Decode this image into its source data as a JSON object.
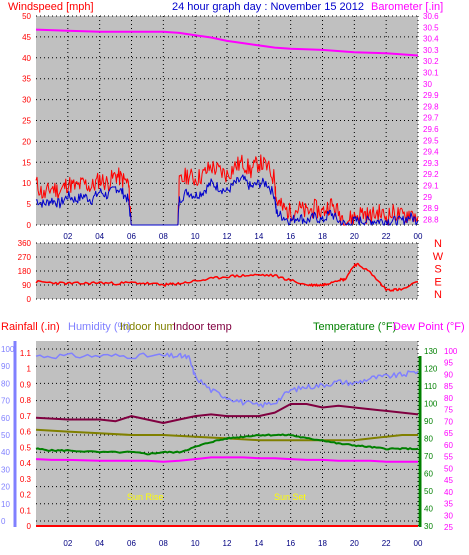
{
  "colors": {
    "plot_bg": "#c0c0c0",
    "grid": "#000000",
    "wind": "#ff0000",
    "gust": "#ff0000",
    "wind_avg": "#0000cc",
    "barometer": "#ff00ff",
    "direction": "#ff0000",
    "rain": "#ff0000",
    "humidity": "#8080ff",
    "indoor_hum": "#808000",
    "indoor_temp": "#800040",
    "temperature": "#008000",
    "dewpoint": "#ff00ff",
    "axis_left": "#8080ff",
    "axis_right": "#008000",
    "sun_label": "#ffff00"
  },
  "header": {
    "windspeed_label": "Windspeed [mph]",
    "title": "24 hour graph day : November 15 2012",
    "barometer_label": "Barometer [.in]"
  },
  "lower_header": {
    "rainfall_label": "Rainfall (.in)",
    "humidity_label": "Humidity (%)",
    "indoor_hum_label": "Indoor hum",
    "indoor_temp_label": "Indoor temp",
    "temperature_label": "Temperature (°F)",
    "dewpoint_label": "Dew Point (°F)"
  },
  "markers": {
    "sun_rise": "Sun Rise",
    "sun_set": "Sun Set"
  },
  "chart_data": [
    {
      "type": "line",
      "panel": "wind_barometer",
      "x_ticks": [
        "02",
        "04",
        "06",
        "08",
        "10",
        "12",
        "14",
        "16",
        "18",
        "20",
        "22",
        "00"
      ],
      "xlim": [
        0,
        24
      ],
      "y_left_label": "Windspeed [mph]",
      "y_left_ticks": [
        0,
        5,
        10,
        15,
        20,
        25,
        30,
        35,
        40,
        45,
        50
      ],
      "ylim_left": [
        0,
        50
      ],
      "y_right_label": "Barometer [.in]",
      "y_right_ticks": [
        "28.8",
        "28.9",
        "29",
        "29.1",
        "29.2",
        "29.3",
        "29.4",
        "29.5",
        "29.6",
        "29.7",
        "29.8",
        "29.9",
        "30",
        "30.1",
        "30.2",
        "30.3",
        "30.4",
        "30.5",
        "30.6"
      ],
      "ylim_right": [
        28.75,
        30.6
      ],
      "series": [
        {
          "role": "barometer",
          "axis": "right",
          "x": [
            0,
            2,
            4,
            6,
            8,
            9,
            10,
            11,
            12,
            13,
            14,
            15,
            16,
            18,
            20,
            22,
            24
          ],
          "y": [
            30.48,
            30.47,
            30.46,
            30.46,
            30.46,
            30.45,
            30.43,
            30.41,
            30.38,
            30.36,
            30.34,
            30.32,
            30.31,
            30.3,
            30.28,
            30.27,
            30.25
          ]
        },
        {
          "role": "gust",
          "axis": "left",
          "x": [
            0,
            0.5,
            1,
            1.5,
            2,
            2.5,
            3,
            3.5,
            4,
            4.5,
            5,
            5.4,
            5.8,
            6,
            8,
            8.9,
            9,
            9.5,
            10,
            10.5,
            11,
            11.5,
            12,
            12.5,
            13,
            13.5,
            14,
            14.5,
            15,
            15.1,
            15.5,
            16,
            16.5,
            17,
            17.5,
            18,
            18.5,
            19,
            19.5,
            20,
            20.5,
            21,
            21.5,
            22,
            22.5,
            23,
            23.5,
            24
          ],
          "y": [
            10,
            7,
            9,
            8,
            10,
            9,
            10,
            9,
            11,
            10,
            12,
            11,
            10,
            0,
            0,
            0,
            10,
            12,
            11,
            12,
            14,
            13,
            12,
            14,
            15,
            13,
            15,
            14,
            11,
            6,
            4,
            3,
            4,
            3,
            4,
            3,
            5,
            3,
            1,
            2,
            3,
            2,
            3,
            2,
            3,
            2,
            3,
            2
          ]
        },
        {
          "role": "wind_avg",
          "axis": "left",
          "x": [
            0,
            0.5,
            1,
            1.5,
            2,
            2.5,
            3,
            3.5,
            4,
            4.5,
            5,
            5.4,
            5.8,
            6,
            8,
            8.9,
            9,
            9.5,
            10,
            10.5,
            11,
            11.5,
            12,
            12.5,
            13,
            13.5,
            14,
            14.5,
            15,
            15.1,
            15.5,
            16,
            16.5,
            17,
            17.5,
            18,
            18.5,
            19,
            19.5,
            20,
            20.5,
            21,
            21.5,
            22,
            22.5,
            23,
            23.5,
            24
          ],
          "y": [
            6,
            5,
            6,
            5,
            7,
            6,
            7,
            6,
            8,
            7,
            9,
            8,
            6,
            0,
            0,
            0,
            6,
            8,
            7,
            8,
            10,
            9,
            8,
            10,
            11,
            9,
            10,
            10,
            7,
            3,
            2,
            1,
            2,
            1,
            2,
            1,
            3,
            1,
            0,
            1,
            1,
            1,
            1,
            1,
            1,
            1,
            2,
            1
          ]
        }
      ]
    },
    {
      "type": "line",
      "panel": "wind_direction",
      "x_ticks": [
        "02",
        "04",
        "06",
        "08",
        "10",
        "12",
        "14",
        "16",
        "18",
        "20",
        "22",
        "00"
      ],
      "xlim": [
        0,
        24
      ],
      "y_left_ticks": [
        0,
        90,
        180,
        270,
        360
      ],
      "ylim": [
        0,
        360
      ],
      "y_right_ticks": [
        "N",
        "W",
        "S",
        "E",
        "N"
      ],
      "series": [
        {
          "role": "direction",
          "x": [
            0,
            1,
            2,
            3,
            4,
            5,
            6,
            7,
            8,
            8.5,
            9,
            10,
            11,
            12,
            13,
            14,
            15,
            16,
            17,
            17.5,
            18,
            18.3,
            19,
            19.4,
            20,
            20.3,
            21,
            22,
            22.5,
            23,
            24
          ],
          "y": [
            110,
            105,
            100,
            100,
            105,
            100,
            105,
            100,
            90,
            95,
            100,
            115,
            130,
            145,
            150,
            155,
            150,
            120,
            90,
            90,
            90,
            100,
            125,
            125,
            220,
            220,
            170,
            60,
            60,
            60,
            110
          ]
        }
      ]
    },
    {
      "type": "line",
      "panel": "temp_humidity_rain",
      "x_ticks": [
        "02",
        "04",
        "06",
        "08",
        "10",
        "12",
        "14",
        "16",
        "18",
        "20",
        "22",
        "00"
      ],
      "xlim": [
        0,
        24
      ],
      "y_axes": {
        "rainfall_ticks": [
          "0",
          "0.1",
          "0.2",
          "0.3",
          "0.4",
          "0.5",
          "0.6",
          "0.7",
          "0.8",
          "0.9",
          "1",
          "1.1"
        ],
        "humidity_ticks": [
          0,
          10,
          20,
          30,
          40,
          50,
          60,
          70,
          80,
          90,
          100
        ],
        "temperature_ticks": [
          30,
          40,
          50,
          60,
          70,
          80,
          90,
          100,
          110,
          120,
          130
        ],
        "dewpoint_ticks": [
          25,
          30,
          35,
          40,
          45,
          50,
          55,
          60,
          65,
          70,
          75,
          80,
          85,
          90,
          95,
          100
        ]
      },
      "series": [
        {
          "role": "humidity",
          "x": [
            0,
            2,
            4,
            6,
            8,
            9,
            9.6,
            10,
            11,
            12,
            13,
            14,
            15,
            16,
            17,
            18,
            19,
            20,
            21,
            22,
            23,
            24
          ],
          "y": [
            96,
            96,
            96,
            96,
            96,
            96,
            95,
            84,
            76,
            72,
            69,
            67,
            69,
            76,
            78,
            79,
            81,
            80,
            83,
            84,
            85,
            87
          ]
        },
        {
          "role": "indoor_temp",
          "x": [
            0,
            2,
            4,
            5,
            6,
            8,
            9,
            10,
            11,
            12,
            13,
            14,
            15,
            16,
            17,
            18,
            19,
            20,
            21,
            22,
            23,
            24
          ],
          "y": [
            60,
            59,
            59,
            58,
            61,
            57,
            59,
            61,
            62,
            61,
            61,
            61,
            63,
            68,
            68,
            66,
            67,
            66,
            65,
            64,
            63,
            62
          ]
        },
        {
          "role": "indoor_hum",
          "x": [
            0,
            2,
            4,
            6,
            8,
            10,
            12,
            14,
            16,
            18,
            20,
            22,
            23,
            24
          ],
          "y": [
            53,
            52,
            51,
            50,
            50,
            49,
            48,
            47,
            47,
            47,
            47,
            49,
            50,
            50
          ]
        },
        {
          "role": "temperature",
          "x": [
            0,
            1,
            2,
            4,
            6,
            7,
            8,
            9,
            10,
            11,
            12,
            13,
            14,
            15,
            16,
            17,
            18,
            19,
            20,
            21,
            22,
            23,
            24
          ],
          "y": [
            42,
            41,
            41,
            40,
            40,
            39,
            40,
            40,
            43,
            46,
            48,
            49,
            50,
            50,
            50,
            48,
            47,
            45,
            44,
            43,
            42,
            42,
            42
          ]
        },
        {
          "role": "dewpoint",
          "x": [
            0,
            1,
            2,
            4,
            6,
            7,
            8,
            9,
            10,
            11,
            12,
            13,
            14,
            15,
            16,
            17,
            18,
            19,
            20,
            21,
            22,
            23,
            24
          ],
          "y": [
            36,
            35.5,
            35.5,
            35,
            35,
            35,
            34.5,
            35,
            36,
            37,
            37,
            37,
            36.5,
            36.5,
            36,
            35.5,
            35.5,
            35,
            35,
            35,
            34.5,
            34.5,
            34.5
          ]
        },
        {
          "role": "rainfall",
          "x": [
            0,
            24
          ],
          "y": [
            0,
            0
          ]
        }
      ]
    }
  ]
}
